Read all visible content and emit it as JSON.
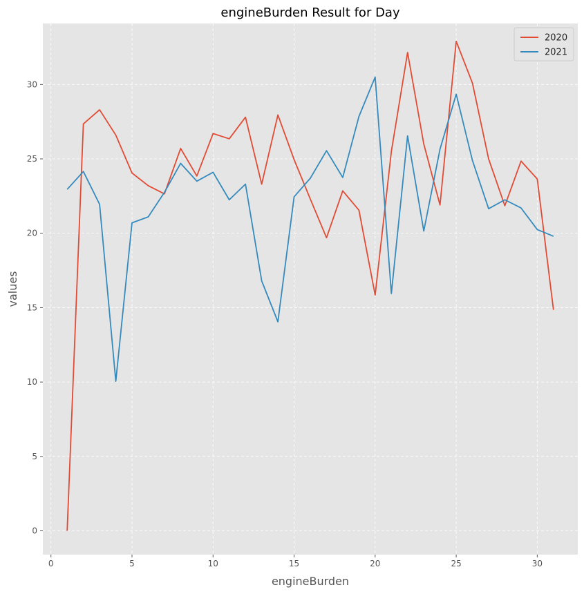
{
  "chart_data": {
    "type": "line",
    "title": "engineBurden Result for Day",
    "xlabel": "engineBurden",
    "ylabel": "values",
    "xlim": [
      -0.5,
      32.5
    ],
    "ylim": [
      -1.6,
      34.1
    ],
    "xticks": [
      0,
      5,
      10,
      15,
      20,
      25,
      30
    ],
    "yticks": [
      0,
      5,
      10,
      15,
      20,
      25,
      30
    ],
    "grid": true,
    "legend_position": "top-right",
    "x": [
      1,
      2,
      3,
      4,
      5,
      6,
      7,
      8,
      9,
      10,
      11,
      12,
      13,
      14,
      15,
      16,
      17,
      18,
      19,
      20,
      21,
      22,
      23,
      24,
      25,
      26,
      27,
      28,
      29,
      30,
      31
    ],
    "series": [
      {
        "name": "2020",
        "color": "#E24A33",
        "values": [
          0,
          27.35,
          28.3,
          26.6,
          24.05,
          23.2,
          22.65,
          25.7,
          23.85,
          26.7,
          26.35,
          27.8,
          23.3,
          27.95,
          24.95,
          22.3,
          19.7,
          22.85,
          21.55,
          15.85,
          25.5,
          32.15,
          26.0,
          21.9,
          32.9,
          30.1,
          25.0,
          21.85,
          24.85,
          23.65,
          14.85
        ]
      },
      {
        "name": "2021",
        "color": "#348ABD",
        "values": [
          22.95,
          24.15,
          21.95,
          10.05,
          20.7,
          21.1,
          22.75,
          24.7,
          23.5,
          24.1,
          22.25,
          23.3,
          16.8,
          14.05,
          22.45,
          23.7,
          25.55,
          23.75,
          27.85,
          30.5,
          15.95,
          26.55,
          20.15,
          25.65,
          29.35,
          24.9,
          21.65,
          22.25,
          21.7,
          20.25,
          19.8
        ]
      }
    ]
  }
}
